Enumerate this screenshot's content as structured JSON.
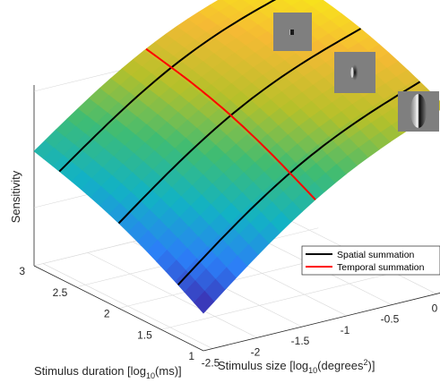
{
  "chart_data": {
    "type": "surface",
    "xlabel": {
      "main": "Stimulus size [log",
      "sub": "10",
      "mid": "(degrees",
      "sup": "2",
      "end": ")]"
    },
    "ylabel": {
      "main": "Stimulus duration [log",
      "sub": "10",
      "end": "(ms)]"
    },
    "zlabel": "Sensitivity",
    "x_ticks": [
      "-2.5",
      "-2",
      "-1.5",
      "-1",
      "-0.5",
      "0"
    ],
    "y_ticks": [
      "1",
      "1.5",
      "2",
      "2.5",
      "3"
    ],
    "x_range": [
      -2.6,
      0.1
    ],
    "y_range": [
      1,
      3
    ],
    "colormap": [
      "#3e26a8",
      "#2c7ef7",
      "#12b2c4",
      "#3fbc73",
      "#b5c02a",
      "#f5ba34",
      "#f9fb0e"
    ],
    "spatial_summation_durations": [
      1.3,
      2.0,
      2.7
    ],
    "temporal_summation_size": -1.35,
    "legend": {
      "position": "bottom-right",
      "items": [
        {
          "label": "Spatial summation",
          "color": "#000000"
        },
        {
          "label": "Temporal summation",
          "color": "#ff0000"
        }
      ]
    },
    "grid": true
  }
}
